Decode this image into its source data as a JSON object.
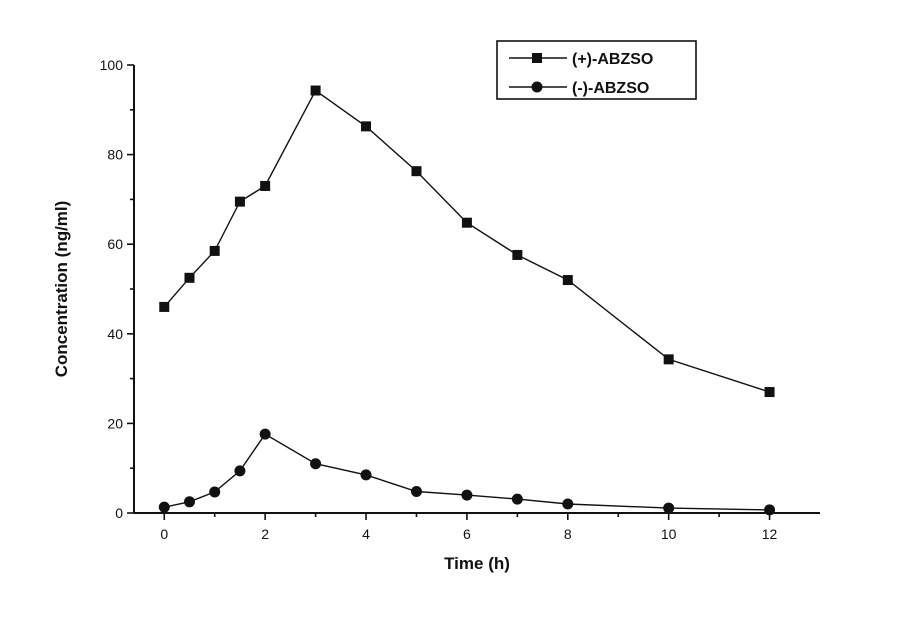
{
  "chart_data": {
    "type": "line",
    "xlabel": "Time (h)",
    "ylabel": "Concentration (ng/ml)",
    "xlim": [
      -0.6,
      13
    ],
    "ylim": [
      0,
      100
    ],
    "x_ticks": [
      0,
      2,
      4,
      6,
      8,
      10,
      12
    ],
    "y_ticks": [
      0,
      20,
      40,
      60,
      80,
      100
    ],
    "legend": {
      "placement": "top-right"
    },
    "series": [
      {
        "name": "(+)-ABZSO",
        "marker": "square",
        "color": "#111111",
        "x": [
          0,
          0.5,
          1,
          1.5,
          2,
          3,
          4,
          5,
          6,
          7,
          8,
          10,
          12
        ],
        "y": [
          46.0,
          52.5,
          58.5,
          69.5,
          73.0,
          94.3,
          86.3,
          76.3,
          64.8,
          57.6,
          52.0,
          34.3,
          27.0
        ]
      },
      {
        "name": "(-)-ABZSO",
        "marker": "circle",
        "color": "#111111",
        "x": [
          0,
          0.5,
          1,
          1.5,
          2,
          3,
          4,
          5,
          6,
          7,
          8,
          10,
          12
        ],
        "y": [
          1.3,
          2.5,
          4.7,
          9.4,
          17.6,
          11.0,
          8.5,
          4.8,
          4.0,
          3.1,
          2.0,
          1.1,
          0.7
        ]
      }
    ]
  }
}
